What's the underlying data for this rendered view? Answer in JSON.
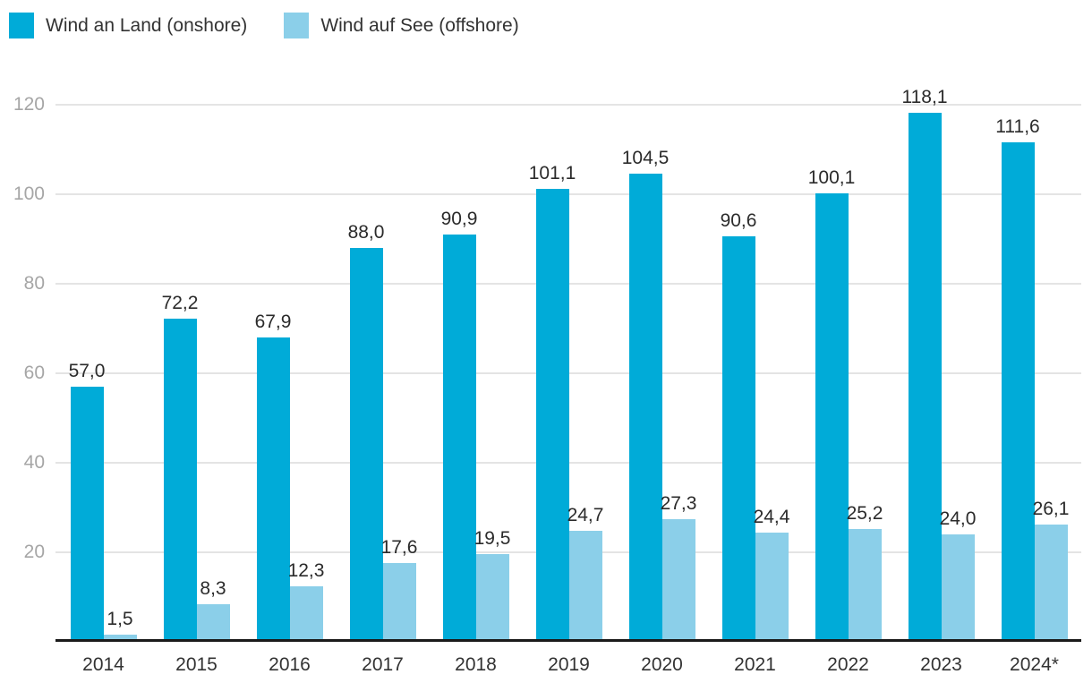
{
  "legend": {
    "items": [
      {
        "label": "Wind an Land (onshore)",
        "color": "#00abd8"
      },
      {
        "label": "Wind auf See (offshore)",
        "color": "#8bcfe9"
      }
    ]
  },
  "chart_data": {
    "type": "bar",
    "title": "",
    "categories": [
      "2014",
      "2015",
      "2016",
      "2017",
      "2018",
      "2019",
      "2020",
      "2021",
      "2022",
      "2023",
      "2024*"
    ],
    "series": [
      {
        "name": "Wind an Land (onshore)",
        "color": "#00abd8",
        "values": [
          57.0,
          72.2,
          67.9,
          88.0,
          90.9,
          101.1,
          104.5,
          90.6,
          100.1,
          118.1,
          111.6
        ],
        "labels": [
          "57,0",
          "72,2",
          "67,9",
          "88,0",
          "90,9",
          "101,1",
          "104,5",
          "90,6",
          "100,1",
          "118,1",
          "111,6"
        ]
      },
      {
        "name": "Wind auf See (offshore)",
        "color": "#8bcfe9",
        "values": [
          1.5,
          8.3,
          12.3,
          17.6,
          19.5,
          24.7,
          27.3,
          24.4,
          25.2,
          24.0,
          26.1
        ],
        "labels": [
          "1,5",
          "8,3",
          "12,3",
          "17,6",
          "19,5",
          "24,7",
          "27,3",
          "24,4",
          "25,2",
          "24,0",
          "26,1"
        ]
      }
    ],
    "ylim": [
      0,
      120
    ],
    "yticks": [
      20,
      40,
      60,
      80,
      100,
      120
    ],
    "grid": true,
    "legend_position": "top-left",
    "decimal_separator": "comma"
  },
  "colors": {
    "gridline": "#e4e4e4",
    "axis_line": "#1a1a1a",
    "y_tick_text": "#a6a6a6",
    "label_text": "#2b2b2b"
  }
}
